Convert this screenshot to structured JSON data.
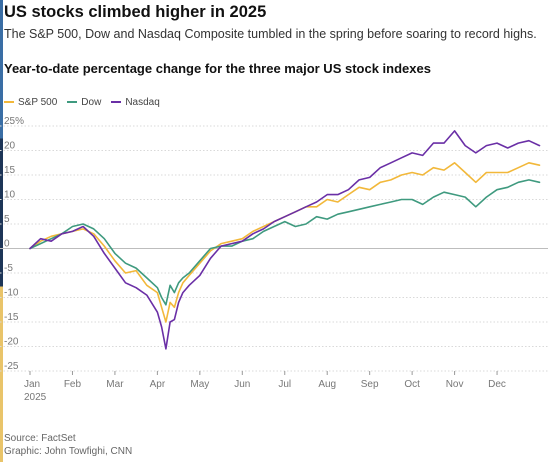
{
  "header": {
    "title": "US stocks climbed higher in 2025",
    "subtitle": "The S&P 500, Dow and Nasdaq Composite tumbled in the spring before soaring to record highs.",
    "chart_heading": "Year-to-date percentage change for the three major US stock indexes"
  },
  "footer": {
    "source": "Source: FactSet",
    "credit": "Graphic: John Towfighi, CNN"
  },
  "colors": {
    "sp500": "#f2b83a",
    "dow": "#3f9a7f",
    "nasdaq": "#6a2fa6",
    "grid": "#d9d9d9",
    "zero_line": "#bdbdbd",
    "axis_text": "#777777"
  },
  "chart_data": {
    "type": "line",
    "title": "Year-to-date percentage change for the three major US stock indexes",
    "xlabel": "",
    "ylabel": "",
    "x_unit": "month of 2025 (0 = Jan 1, 12 = Dec 31)",
    "x_ticks": [
      "Jan",
      "Feb",
      "Mar",
      "Apr",
      "May",
      "Jun",
      "Jul",
      "Aug",
      "Sep",
      "Oct",
      "Nov",
      "Dec"
    ],
    "x_tick_year": "2025",
    "y_ticks": [
      -25,
      -20,
      -15,
      -10,
      -5,
      0,
      5,
      10,
      15,
      20,
      25
    ],
    "y_top_suffix": "%",
    "ylim": [
      -25,
      25
    ],
    "xlim": [
      0,
      12.2
    ],
    "grid": true,
    "legend_position": "top-left",
    "x": [
      0,
      0.25,
      0.5,
      0.75,
      1,
      1.25,
      1.5,
      1.75,
      2,
      2.25,
      2.5,
      2.75,
      3,
      3.1,
      3.2,
      3.3,
      3.4,
      3.5,
      3.6,
      3.75,
      4,
      4.25,
      4.5,
      4.75,
      5,
      5.25,
      5.5,
      5.75,
      6,
      6.25,
      6.5,
      6.75,
      7,
      7.25,
      7.5,
      7.75,
      8,
      8.25,
      8.5,
      8.75,
      9,
      9.25,
      9.5,
      9.75,
      10,
      10.25,
      10.5,
      10.75,
      11,
      11.25,
      11.5,
      11.75,
      12
    ],
    "series": [
      {
        "name": "S&P 500",
        "color_key": "sp500",
        "values": [
          0,
          1.5,
          2.5,
          3.0,
          3.5,
          4.0,
          3.0,
          0.5,
          -2.5,
          -5.0,
          -4.5,
          -7.5,
          -9.0,
          -12.0,
          -15.0,
          -11.0,
          -12.0,
          -9.0,
          -7.0,
          -5.5,
          -3.0,
          -0.5,
          1.0,
          1.5,
          2.0,
          3.5,
          4.5,
          5.5,
          6.5,
          7.5,
          8.5,
          8.5,
          10.0,
          9.5,
          11.0,
          12.5,
          12.0,
          13.5,
          14.0,
          15.0,
          15.5,
          15.0,
          16.5,
          16.0,
          17.5,
          15.5,
          13.5,
          15.5,
          15.5,
          15.5,
          16.5,
          17.5,
          17.0
        ]
      },
      {
        "name": "Dow",
        "color_key": "dow",
        "values": [
          0,
          1.0,
          2.0,
          3.0,
          4.5,
          5.0,
          4.0,
          2.0,
          -1.0,
          -3.0,
          -4.0,
          -6.0,
          -8.0,
          -10.0,
          -11.5,
          -7.5,
          -9.0,
          -7.0,
          -6.0,
          -5.0,
          -2.5,
          0.0,
          0.5,
          0.5,
          1.5,
          2.0,
          3.5,
          4.5,
          5.5,
          4.5,
          5.0,
          6.5,
          6.0,
          7.0,
          7.5,
          8.0,
          8.5,
          9.0,
          9.5,
          10.0,
          10.0,
          9.0,
          10.5,
          11.5,
          11.0,
          10.5,
          8.5,
          10.5,
          12.0,
          12.5,
          13.5,
          14.0,
          13.5
        ]
      },
      {
        "name": "Nasdaq",
        "color_key": "nasdaq",
        "values": [
          0,
          2.0,
          1.5,
          3.0,
          3.5,
          4.5,
          2.5,
          -1.0,
          -4.0,
          -7.0,
          -8.0,
          -9.5,
          -13.0,
          -16.0,
          -20.5,
          -15.0,
          -14.5,
          -11.0,
          -9.0,
          -7.5,
          -5.5,
          -2.0,
          0.5,
          1.0,
          1.5,
          3.0,
          4.0,
          5.5,
          6.5,
          7.5,
          8.5,
          9.5,
          11.0,
          11.0,
          12.0,
          14.0,
          14.5,
          16.5,
          17.5,
          18.5,
          19.5,
          19.0,
          21.5,
          21.5,
          24.0,
          21.0,
          19.5,
          21.0,
          21.5,
          20.5,
          21.5,
          22.0,
          21.0
        ]
      }
    ]
  }
}
